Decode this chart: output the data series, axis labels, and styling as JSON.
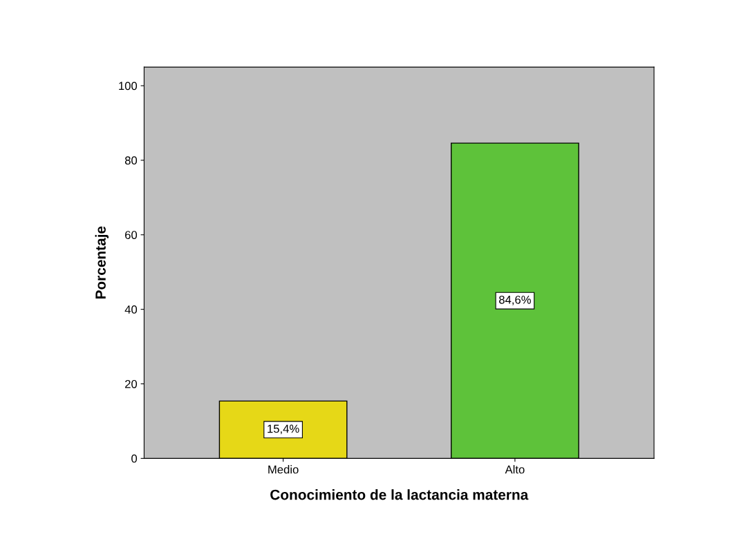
{
  "chart_data": {
    "type": "bar",
    "xlabel": "Conocimiento de la lactancia materna",
    "ylabel": "Porcentaje",
    "categories": [
      "Medio",
      "Alto"
    ],
    "values": [
      15.4,
      84.6
    ],
    "value_labels": [
      "15,4%",
      "84,6%"
    ],
    "colors": [
      "#e6d817",
      "#5ec23a"
    ],
    "ylim": [
      0,
      105
    ],
    "yticks": [
      0,
      20,
      40,
      60,
      80,
      100
    ],
    "grid": false
  }
}
